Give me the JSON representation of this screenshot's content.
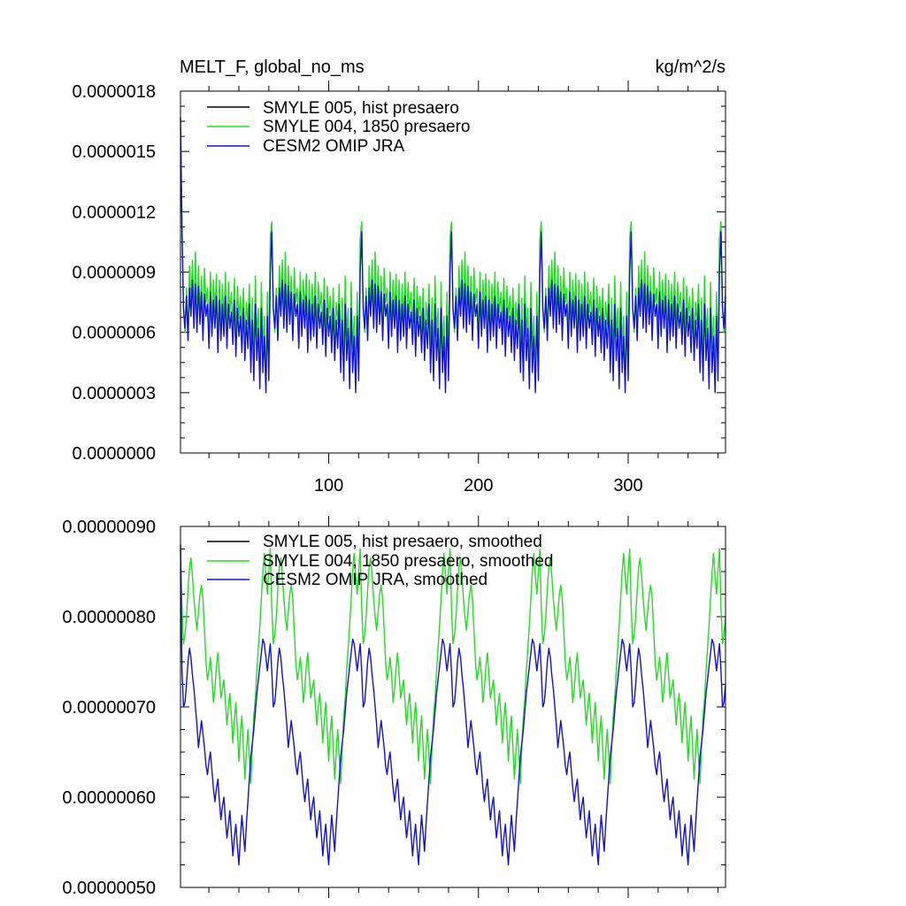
{
  "chart_data": [
    {
      "type": "line",
      "title": "MELT_F, global_no_ms",
      "units": "kg/m^2/s",
      "xlabel": "",
      "ylabel": "",
      "xlim": [
        1,
        365
      ],
      "ylim": [
        0.0,
        1.8e-06
      ],
      "x_ticks": [
        100,
        200,
        300
      ],
      "x_tick_labels": [
        "100",
        "200",
        "300"
      ],
      "y_ticks": [
        0.0,
        3e-07,
        6e-07,
        9e-07,
        1.2e-06,
        1.5e-06,
        1.8e-06
      ],
      "y_tick_labels": [
        "0.0000000",
        "0.0000003",
        "0.0000006",
        "0.0000009",
        "0.0000012",
        "0.0000015",
        "0.0000018"
      ],
      "legend_position": "top-left",
      "series": [
        {
          "name": "SMYLE 005, hist presaero",
          "color": "#000000",
          "values": [],
          "note": "no visible data"
        },
        {
          "name": "SMYLE 004, 1850 presaero",
          "color": "#22dd22",
          "period": 61,
          "values": [
            1.62e-06,
            1.15e-06,
            7.2e-07,
            6e-07,
            8.2e-07,
            5.6e-07,
            9.3e-07,
            7.3e-07,
            9.6e-07,
            6.8e-07,
            1e-06,
            6.6e-07,
            9.3e-07,
            6.9e-07,
            8.8e-07,
            6e-07,
            9.2e-07,
            7.5e-07,
            8.2e-07,
            5.8e-07,
            9e-07,
            6.4e-07,
            8.6e-07,
            7e-07,
            8.9e-07,
            5.5e-07,
            8.6e-07,
            6.2e-07,
            8.4e-07,
            6.6e-07,
            9e-07,
            5.8e-07,
            8.5e-07,
            7e-07,
            8e-07,
            6.2e-07,
            8.7e-07,
            5.6e-07,
            8.3e-07,
            6.7e-07,
            7.8e-07,
            6e-07,
            8.2e-07,
            5.7e-07,
            7.5e-07,
            6.4e-07,
            8.4e-07,
            5e-07,
            7.7e-07,
            4.5e-07,
            8.8e-07,
            5.8e-07,
            7.2e-07,
            4e-07,
            8.5e-07,
            5.2e-07,
            6.8e-07,
            3.6e-07,
            8e-07,
            4.6e-07,
            1.07e-06
          ],
          "x_start": 1,
          "repeat_to": 365
        },
        {
          "name": "CESM2 OMIP JRA",
          "color": "#1111dd",
          "period": 61,
          "values": [
            1.67e-06,
            1.1e-06,
            7.2e-07,
            6.2e-07,
            7.8e-07,
            5.6e-07,
            8.2e-07,
            6.8e-07,
            8.6e-07,
            6.2e-07,
            8.4e-07,
            6e-07,
            8.3e-07,
            6.4e-07,
            8e-07,
            5.6e-07,
            7.9e-07,
            6.8e-07,
            7.4e-07,
            5.2e-07,
            8e-07,
            5.8e-07,
            7.6e-07,
            6.2e-07,
            7.8e-07,
            5e-07,
            7.6e-07,
            5.6e-07,
            7.4e-07,
            5.8e-07,
            7.8e-07,
            5.2e-07,
            7.4e-07,
            6.2e-07,
            7e-07,
            5.4e-07,
            7.6e-07,
            4.8e-07,
            7.2e-07,
            5.8e-07,
            6.8e-07,
            5e-07,
            7.2e-07,
            4.6e-07,
            6.6e-07,
            5.2e-07,
            7.4e-07,
            4e-07,
            6.6e-07,
            3.6e-07,
            7.4e-07,
            4.6e-07,
            6.2e-07,
            3.2e-07,
            7.2e-07,
            4e-07,
            5.8e-07,
            3e-07,
            6.8e-07,
            3.6e-07,
            9e-07
          ],
          "x_start": 1,
          "repeat_to": 365
        }
      ]
    },
    {
      "type": "line",
      "title": "",
      "xlabel": "",
      "ylabel": "",
      "xlim": [
        1,
        365
      ],
      "ylim": [
        5e-07,
        9e-07
      ],
      "x_ticks": [
        100,
        200,
        300
      ],
      "x_tick_labels": [
        "",
        "",
        ""
      ],
      "y_ticks": [
        5e-07,
        6e-07,
        7e-07,
        8e-07,
        9e-07
      ],
      "y_tick_labels": [
        "0.00000050",
        "0.00000060",
        "0.00000070",
        "0.00000080",
        "0.00000090"
      ],
      "legend_position": "top-left",
      "series": [
        {
          "name": "SMYLE 005, hist presaero, smoothed",
          "color": "#000000",
          "values": [],
          "note": "no visible data"
        },
        {
          "name": "SMYLE 004, 1850 presaero, smoothed",
          "color": "#22dd22",
          "period": 61,
          "values": [
            8.75e-07,
            8.1e-07,
            7.7e-07,
            7.8e-07,
            8e-07,
            8.3e-07,
            8.55e-07,
            8.65e-07,
            8.45e-07,
            8.2e-07,
            8e-07,
            7.85e-07,
            8.05e-07,
            8.25e-07,
            8.35e-07,
            8.2e-07,
            7.85e-07,
            7.5e-07,
            7.3e-07,
            7.4e-07,
            7.55e-07,
            7.35e-07,
            7.05e-07,
            7.2e-07,
            7.45e-07,
            7.6e-07,
            7.35e-07,
            7.1e-07,
            7.2e-07,
            7.3e-07,
            7.05e-07,
            6.8e-07,
            7e-07,
            7.15e-07,
            6.9e-07,
            6.6e-07,
            6.85e-07,
            7.05e-07,
            6.75e-07,
            6.4e-07,
            6.7e-07,
            6.9e-07,
            6.55e-07,
            6.2e-07,
            6.5e-07,
            6.75e-07,
            6.45e-07,
            6.15e-07,
            6.55e-07,
            6.9e-07,
            7.1e-07,
            7.4e-07,
            7.65e-07,
            7.9e-07,
            8.2e-07,
            8.5e-07,
            8.7e-07,
            8.45e-07,
            8.25e-07,
            8.5e-07,
            8.75e-07
          ],
          "x_start": 1,
          "repeat_to": 365
        },
        {
          "name": "CESM2 OMIP JRA, smoothed",
          "color": "#1111dd",
          "period": 61,
          "values": [
            8.8e-07,
            7.4e-07,
            7e-07,
            7.05e-07,
            7.25e-07,
            7.5e-07,
            7.65e-07,
            7.55e-07,
            7.35e-07,
            7.2e-07,
            7e-07,
            6.8e-07,
            6.55e-07,
            6.7e-07,
            6.85e-07,
            6.7e-07,
            6.55e-07,
            6.35e-07,
            6.25e-07,
            6.4e-07,
            6.5e-07,
            6.3e-07,
            6.1e-07,
            5.95e-07,
            6.1e-07,
            6.2e-07,
            5.95e-07,
            5.75e-07,
            5.9e-07,
            6e-07,
            5.75e-07,
            5.55e-07,
            5.7e-07,
            5.85e-07,
            5.6e-07,
            5.35e-07,
            5.55e-07,
            5.7e-07,
            5.45e-07,
            5.25e-07,
            5.55e-07,
            5.8e-07,
            5.6e-07,
            5.4e-07,
            5.7e-07,
            5.95e-07,
            6.2e-07,
            6.45e-07,
            6.6e-07,
            6.75e-07,
            6.95e-07,
            7.15e-07,
            7.3e-07,
            7.45e-07,
            7.6e-07,
            7.75e-07,
            7.7e-07,
            7.55e-07,
            7.4e-07,
            7.55e-07,
            7.7e-07
          ],
          "x_start": 1,
          "repeat_to": 365
        }
      ]
    }
  ]
}
